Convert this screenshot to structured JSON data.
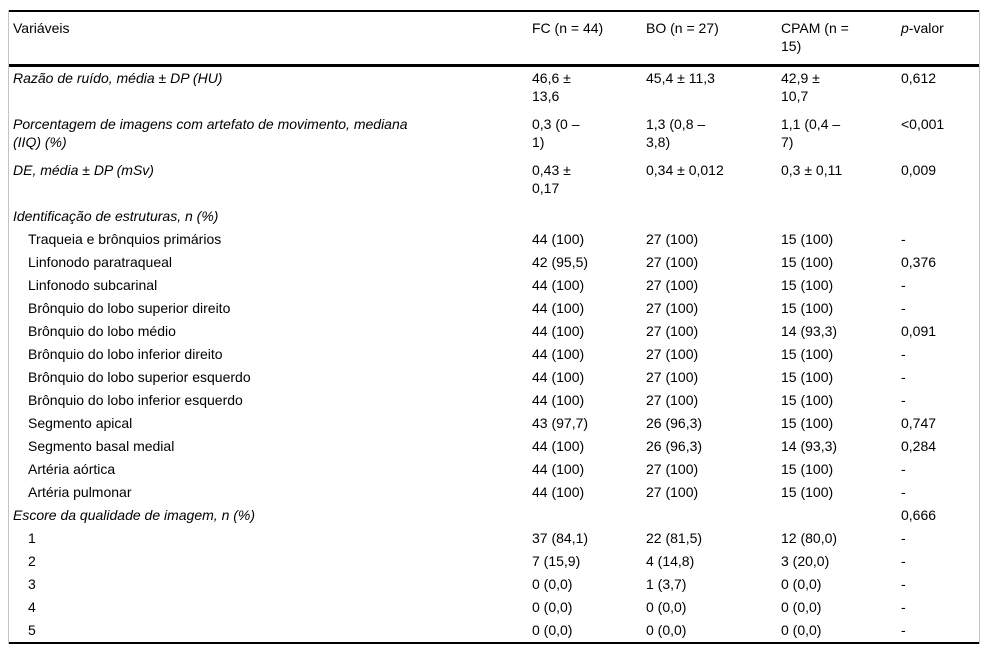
{
  "table": {
    "header": {
      "variaveis": "Variáveis",
      "fc": "FC (n = 44)",
      "bo": "BO (n = 27)",
      "cpam": "CPAM (n =\n15)",
      "p_italic": "p",
      "p_rest": "-valor"
    },
    "rows": [
      {
        "label": "Razão de ruído, média ± DP (HU)",
        "italic": true,
        "indent": false,
        "tall": true,
        "fc": "46,6 ±\n13,6",
        "bo": "45,4 ± 11,3",
        "cpam": "42,9 ±\n10,7",
        "p": "0,612"
      },
      {
        "label": "Porcentagem de imagens com artefato de movimento, mediana\n(IIQ) (%)",
        "italic": true,
        "indent": false,
        "tall": true,
        "fc": "0,3 (0 –\n1)",
        "bo": "1,3 (0,8 –\n3,8)",
        "cpam": "1,1 (0,4 –\n7)",
        "p": "<0,001"
      },
      {
        "label": "DE, média ± DP (mSv)",
        "italic": true,
        "indent": false,
        "tall": true,
        "fc": "0,43 ±\n0,17",
        "bo": "0,34 ± 0,012",
        "cpam": "0,3 ± 0,11",
        "p": "0,009"
      },
      {
        "label": "Identificação de estruturas, n (%)",
        "italic": true,
        "indent": false,
        "tall": false,
        "fc": "",
        "bo": "",
        "cpam": "",
        "p": ""
      },
      {
        "label": "Traqueia e brônquios primários",
        "italic": false,
        "indent": true,
        "tall": false,
        "fc": "44 (100)",
        "bo": "27 (100)",
        "cpam": "15 (100)",
        "p": "-"
      },
      {
        "label": "Linfonodo paratraqueal",
        "italic": false,
        "indent": true,
        "tall": false,
        "fc": "42 (95,5)",
        "bo": "27 (100)",
        "cpam": "15 (100)",
        "p": "0,376"
      },
      {
        "label": "Linfonodo subcarinal",
        "italic": false,
        "indent": true,
        "tall": false,
        "fc": "44 (100)",
        "bo": "27 (100)",
        "cpam": "15 (100)",
        "p": "-"
      },
      {
        "label": "Brônquio do lobo superior direito",
        "italic": false,
        "indent": true,
        "tall": false,
        "fc": "44 (100)",
        "bo": "27 (100)",
        "cpam": "15 (100)",
        "p": "-"
      },
      {
        "label": "Brônquio do lobo médio",
        "italic": false,
        "indent": true,
        "tall": false,
        "fc": "44 (100)",
        "bo": "27 (100)",
        "cpam": "14 (93,3)",
        "p": "0,091"
      },
      {
        "label": "Brônquio do lobo inferior direito",
        "italic": false,
        "indent": true,
        "tall": false,
        "fc": "44 (100)",
        "bo": "27 (100)",
        "cpam": "15 (100)",
        "p": "-"
      },
      {
        "label": "Brônquio do lobo superior esquerdo",
        "italic": false,
        "indent": true,
        "tall": false,
        "fc": "44 (100)",
        "bo": "27 (100)",
        "cpam": "15 (100)",
        "p": "-"
      },
      {
        "label": "Brônquio do lobo inferior esquerdo",
        "italic": false,
        "indent": true,
        "tall": false,
        "fc": "44 (100)",
        "bo": "27 (100)",
        "cpam": "15 (100)",
        "p": "-"
      },
      {
        "label": "Segmento apical",
        "italic": false,
        "indent": true,
        "tall": false,
        "fc": "43 (97,7)",
        "bo": "26 (96,3)",
        "cpam": "15 (100)",
        "p": "0,747"
      },
      {
        "label": "Segmento basal medial",
        "italic": false,
        "indent": true,
        "tall": false,
        "fc": "44 (100)",
        "bo": "26 (96,3)",
        "cpam": "14 (93,3)",
        "p": "0,284"
      },
      {
        "label": "Artéria aórtica",
        "italic": false,
        "indent": true,
        "tall": false,
        "fc": "44 (100)",
        "bo": "27 (100)",
        "cpam": "15 (100)",
        "p": "-"
      },
      {
        "label": "Artéria pulmonar",
        "italic": false,
        "indent": true,
        "tall": false,
        "fc": "44 (100)",
        "bo": "27 (100)",
        "cpam": "15 (100)",
        "p": "-"
      },
      {
        "label": "Escore da qualidade de imagem, n (%)",
        "italic": true,
        "indent": false,
        "tall": false,
        "fc": "",
        "bo": "",
        "cpam": "",
        "p": "0,666"
      },
      {
        "label": "1",
        "italic": false,
        "indent": true,
        "tall": false,
        "fc": "37 (84,1)",
        "bo": "22 (81,5)",
        "cpam": "12 (80,0)",
        "p": "-"
      },
      {
        "label": "2",
        "italic": false,
        "indent": true,
        "tall": false,
        "fc": "7 (15,9)",
        "bo": "4 (14,8)",
        "cpam": "3 (20,0)",
        "p": "-"
      },
      {
        "label": "3",
        "italic": false,
        "indent": true,
        "tall": false,
        "fc": "0 (0,0)",
        "bo": "1 (3,7)",
        "cpam": "0 (0,0)",
        "p": "-"
      },
      {
        "label": "4",
        "italic": false,
        "indent": true,
        "tall": false,
        "fc": "0 (0,0)",
        "bo": "0 (0,0)",
        "cpam": "0 (0,0)",
        "p": "-"
      },
      {
        "label": "5",
        "italic": false,
        "indent": true,
        "tall": false,
        "fc": "0 (0,0)",
        "bo": "0 (0,0)",
        "cpam": "0 (0,0)",
        "p": "-"
      }
    ],
    "colors": {
      "text": "#000000",
      "rule": "#000000",
      "side_border": "#c3c3c3",
      "background": "#ffffff"
    }
  }
}
